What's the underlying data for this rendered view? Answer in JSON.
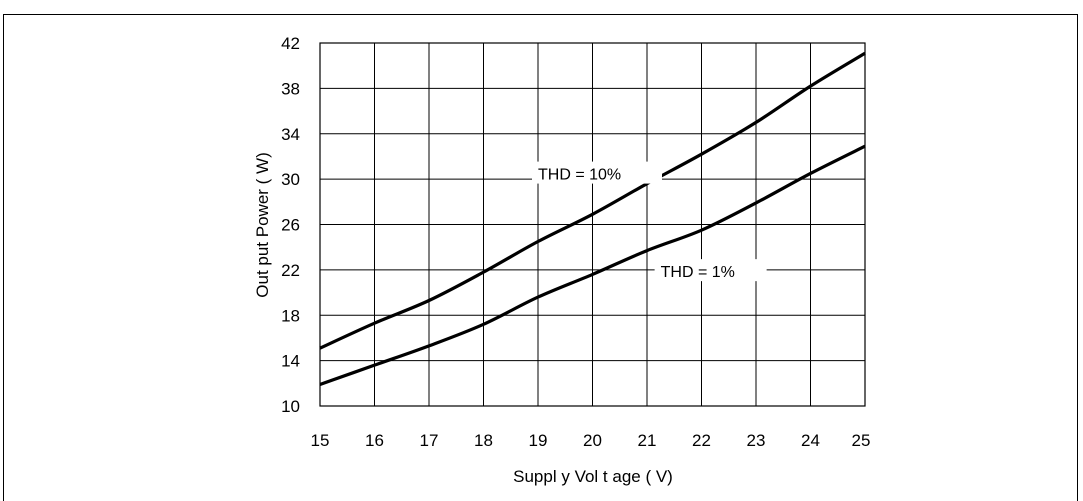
{
  "chart_data": {
    "type": "line",
    "title": "",
    "xlabel": "Suppl y Vol t age ( V)",
    "ylabel": "Out put Power ( W)",
    "xlim": [
      15,
      25
    ],
    "ylim": [
      10,
      42
    ],
    "x_ticks": [
      "15",
      "16",
      "17",
      "18",
      "19",
      "20",
      "21",
      "22",
      "23",
      "24",
      "25"
    ],
    "y_ticks": [
      "10",
      "14",
      "18",
      "22",
      "26",
      "30",
      "34",
      "38",
      "42"
    ],
    "grid": true,
    "series": [
      {
        "name": "THD = 10%",
        "x": [
          15,
          16,
          17,
          18,
          19,
          20,
          21,
          22,
          23,
          24,
          25
        ],
        "y": [
          15.1,
          17.3,
          19.3,
          21.8,
          24.5,
          26.9,
          29.6,
          32.2,
          35.0,
          38.2,
          41.1
        ]
      },
      {
        "name": "THD = 1%",
        "x": [
          15,
          16,
          17,
          18,
          19,
          20,
          21,
          22,
          23,
          24,
          25
        ],
        "y": [
          11.9,
          13.6,
          15.3,
          17.2,
          19.6,
          21.6,
          23.7,
          25.5,
          27.9,
          30.5,
          32.9
        ]
      }
    ],
    "annotations": [
      {
        "text": "THD = 10%",
        "series": 0
      },
      {
        "text": "THD = 1%",
        "series": 1
      }
    ]
  }
}
